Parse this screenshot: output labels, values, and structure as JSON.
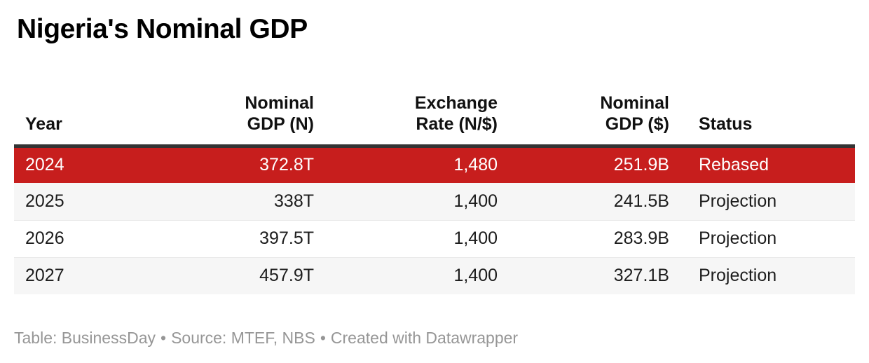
{
  "title": "Nigeria's Nominal GDP",
  "table": {
    "columns": [
      {
        "name": "year",
        "lines": [
          "Year"
        ]
      },
      {
        "name": "nominal_gdp_n",
        "lines": [
          "Nominal",
          "GDP (N)"
        ]
      },
      {
        "name": "exchange_rate",
        "lines": [
          "Exchange",
          "Rate (N/$)"
        ]
      },
      {
        "name": "nominal_gdp_usd",
        "lines": [
          "Nominal",
          "GDP ($)"
        ]
      },
      {
        "name": "status",
        "lines": [
          "Status"
        ]
      }
    ],
    "rows": [
      {
        "highlighted": true,
        "cells": [
          "2024",
          "372.8T",
          "1,480",
          "251.9B",
          "Rebased"
        ]
      },
      {
        "highlighted": false,
        "cells": [
          "2025",
          "338T",
          "1,400",
          "241.5B",
          "Projection"
        ]
      },
      {
        "highlighted": false,
        "cells": [
          "2026",
          "397.5T",
          "1,400",
          "283.9B",
          "Projection"
        ]
      },
      {
        "highlighted": false,
        "cells": [
          "2027",
          "457.9T",
          "1,400",
          "327.1B",
          "Projection"
        ]
      }
    ]
  },
  "footer": {
    "table_label": "Table: ",
    "publisher": "BusinessDay",
    "separator": "•",
    "source_label": "Source: ",
    "source": "MTEF, NBS",
    "created_with": "Created with Datawrapper"
  },
  "colors": {
    "highlight_red": "#c71e1d",
    "header_rule": "#333333",
    "stripe": "#f6f6f6",
    "row_divider": "#e9e9e9",
    "footer_text": "#969696",
    "body_text": "#1d1d1d"
  }
}
